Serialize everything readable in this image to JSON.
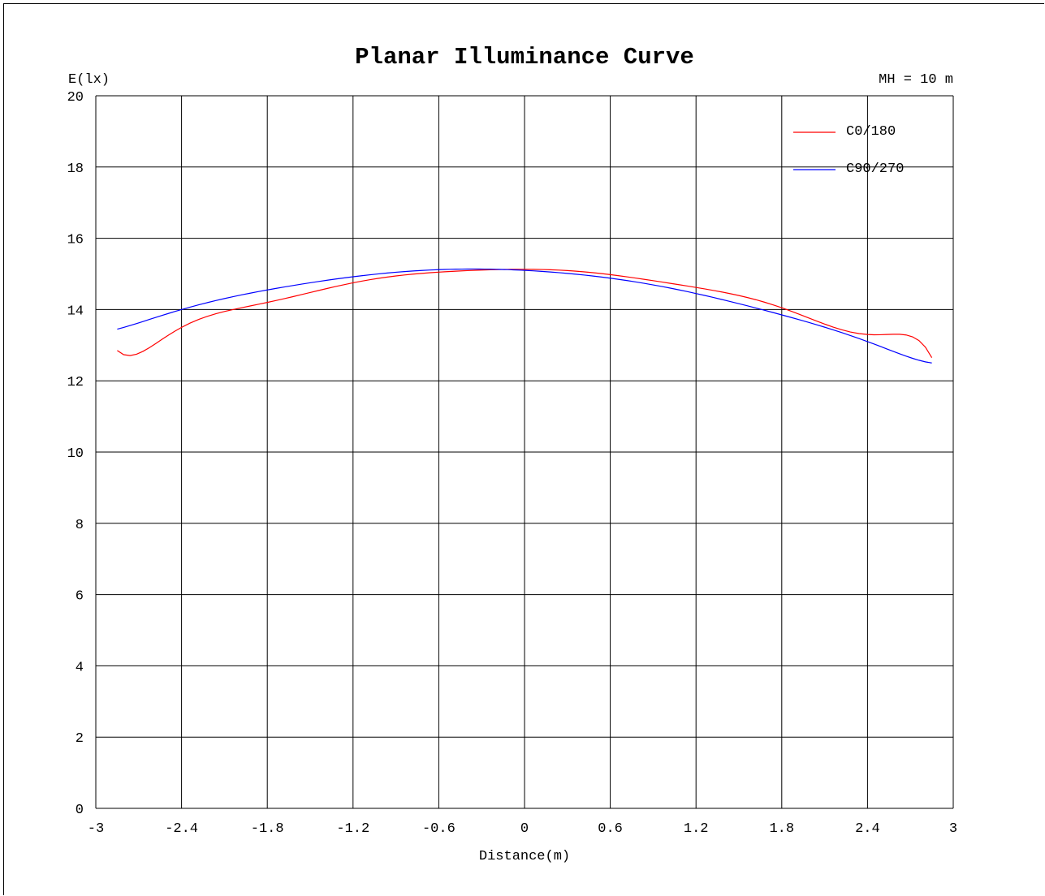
{
  "chart_data": {
    "type": "line",
    "title": "Planar Illuminance Curve",
    "ylabel": "E(lx)",
    "xlabel": "Distance(m)",
    "annotation": "MH = 10 m",
    "xlim": [
      -3,
      3
    ],
    "ylim": [
      0,
      20
    ],
    "xticks": [
      "-3",
      "-2.4",
      "-1.8",
      "-1.2",
      "-0.6",
      "0",
      "0.6",
      "1.2",
      "1.8",
      "2.4",
      "3"
    ],
    "yticks": [
      "0",
      "2",
      "4",
      "6",
      "8",
      "10",
      "12",
      "14",
      "16",
      "18",
      "20"
    ],
    "grid": true,
    "legend_position": "top-right",
    "series": [
      {
        "name": "C0/180",
        "color": "#ff0000",
        "x": [
          -2.85,
          -2.4,
          -1.8,
          -1.2,
          -0.6,
          -0.2,
          0,
          0.6,
          1.2,
          1.8,
          2.4,
          2.85
        ],
        "y": [
          12.85,
          13.5,
          14.2,
          14.75,
          15.05,
          15.12,
          15.13,
          14.98,
          14.62,
          14.05,
          13.3,
          12.65
        ]
      },
      {
        "name": "C90/270",
        "color": "#0000ff",
        "x": [
          -2.85,
          -2.4,
          -1.8,
          -1.2,
          -0.6,
          -0.2,
          0,
          0.6,
          1.2,
          1.8,
          2.4,
          2.85
        ],
        "y": [
          13.45,
          14.0,
          14.55,
          14.92,
          15.12,
          15.13,
          15.1,
          14.88,
          14.45,
          13.85,
          13.1,
          12.5
        ]
      }
    ]
  }
}
